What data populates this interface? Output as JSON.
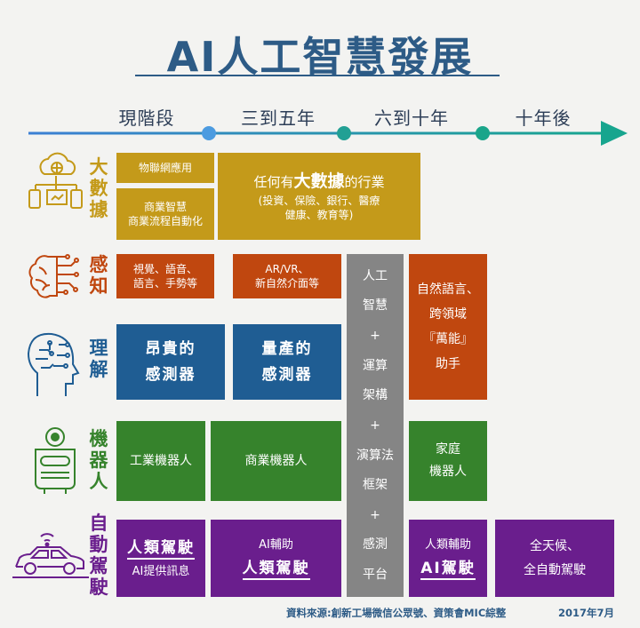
{
  "title": "AI人工智慧發展",
  "phases": [
    "現階段",
    "三到五年",
    "六到十年",
    "十年後"
  ],
  "colors": {
    "title": "#2d5b86",
    "timeline": "#2a9db0",
    "big_data": "#c49a1a",
    "perception": "#c0470f",
    "understanding": "#1f5d93",
    "robots": "#36832c",
    "autonomous_driving": "#6a1e8d",
    "platform": "#858585"
  },
  "categories": {
    "big_data": {
      "label": [
        "大",
        "數",
        "據"
      ],
      "icon": "cloud-network-icon"
    },
    "perception": {
      "label": [
        "感",
        "知"
      ],
      "icon": "brain-circuit-icon"
    },
    "understanding": {
      "label": [
        "理",
        "解"
      ],
      "icon": "head-circuit-icon"
    },
    "robots": {
      "label": [
        "機",
        "器",
        "人"
      ],
      "icon": "robot-icon"
    },
    "autonomous_driving": {
      "label": [
        "自",
        "動",
        "駕",
        "駛"
      ],
      "icon": "connected-car-icon"
    }
  },
  "boxes": {
    "big_data_1": "物聯網應用",
    "big_data_2": [
      "商業智慧",
      "商業流程自動化"
    ],
    "big_data_3": {
      "pre": "任何有",
      "emph": "大數據",
      "post": "的行業",
      "sub1": "(投資、保險、銀行、醫療",
      "sub2": "健康、教育等)"
    },
    "perception_1": [
      "視覺、語音、",
      "語言、手勢等"
    ],
    "perception_2": [
      "AR/VR、",
      "新自然介面等"
    ],
    "platform": [
      "人工",
      "智慧",
      "+",
      "運算",
      "架構",
      "+",
      "演算法",
      "框架",
      "+",
      "感測",
      "平台"
    ],
    "natural_language": [
      "自然語言、",
      "跨領域",
      "『萬能』",
      "助手"
    ],
    "understanding_1": [
      "昂貴的",
      "感測器"
    ],
    "understanding_2": [
      "量產的",
      "感測器"
    ],
    "robots_1": "工業機器人",
    "robots_2": "商業機器人",
    "robots_3": [
      "家庭",
      "機器人"
    ],
    "driving_1": [
      "人類駕駛",
      "AI提供訊息"
    ],
    "driving_2": [
      "AI輔助",
      "人類駕駛"
    ],
    "driving_3": [
      "人類輔助",
      "AI駕駛"
    ],
    "driving_4": [
      "全天候、",
      "全自動駕駛"
    ]
  },
  "source": "資料來源:創新工場微信公眾號、資策會MIC綜整",
  "date": "2017年7月"
}
